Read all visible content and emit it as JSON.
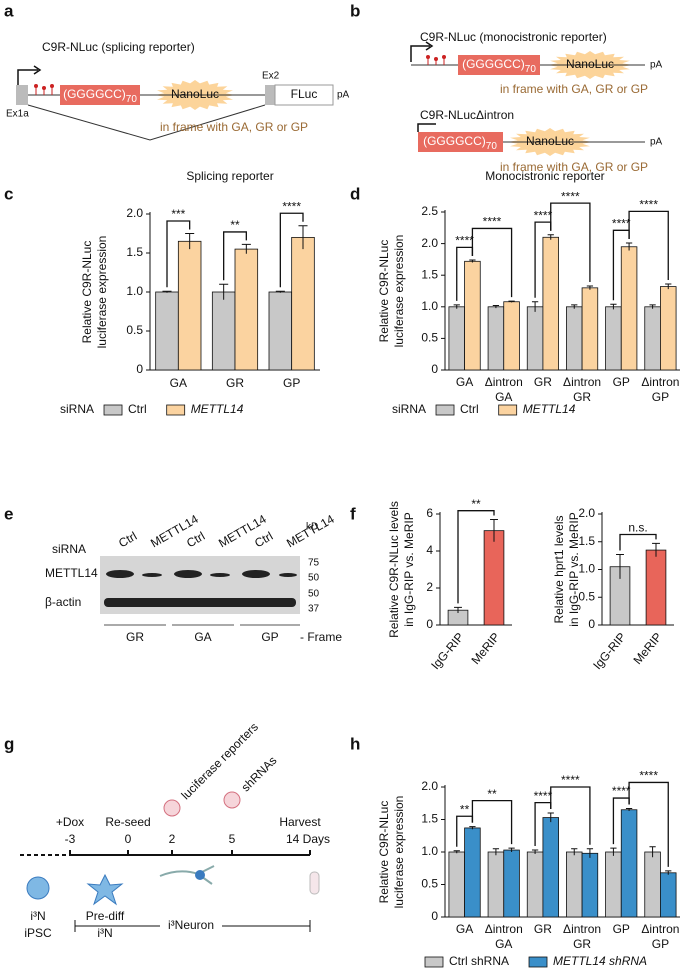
{
  "panel_labels": [
    "a",
    "b",
    "c",
    "d",
    "e",
    "f",
    "g",
    "h"
  ],
  "panel_a": {
    "title": "C9R-NLuc (splicing reporter)",
    "exon1": "Ex1a",
    "repeat": "(GGGGCC)",
    "repeat_count": "70",
    "reporter": "NanoLuc",
    "exon2": "Ex2",
    "fluc": "FLuc",
    "polya": "pA",
    "frame_note": "in frame with GA, GR or GP"
  },
  "panel_b": {
    "constructs": [
      {
        "title": "C9R-NLuc (monocistronic reporter)",
        "repeat": "(GGGGCC)",
        "repeat_count": "70",
        "reporter": "NanoLuc",
        "polya": "pA",
        "frame_note": "in frame with GA, GR or GP"
      },
      {
        "title": "C9R-NLucΔintron",
        "repeat": "(GGGGCC)",
        "repeat_count": "70",
        "reporter": "NanoLuc",
        "polya": "pA",
        "frame_note": "in frame with GA, GR or GP"
      }
    ]
  },
  "panel_e": {
    "sirna_label": "siRNA",
    "lanes": [
      "Ctrl",
      "METTL14",
      "Ctrl",
      "METTL14",
      "Ctrl",
      "METTL14"
    ],
    "kd_label": "kD",
    "markers": [
      "75",
      "50",
      "50",
      "37"
    ],
    "rows": [
      "METTL14",
      "β-actin"
    ],
    "frames": [
      "GR",
      "GA",
      "GP"
    ],
    "frame_label": "- Frame"
  },
  "panel_g": {
    "events": [
      "+Dox",
      "Re-seed",
      "Harvest"
    ],
    "days": [
      "-3",
      "0",
      "2",
      "5",
      "14 Days"
    ],
    "deliveries": [
      "luciferase reporters",
      "shRNAs"
    ],
    "stages": [
      [
        "i³N",
        "iPSC"
      ],
      [
        "Pre-diff",
        "i³N"
      ]
    ],
    "stage_span": "i³Neuron"
  },
  "chart_data": [
    {
      "type": "bar",
      "title": "Splicing reporter",
      "ylabel": [
        "Relative C9R-NLuc",
        "luciferase expression"
      ],
      "legend_title": "siRNA",
      "categories": [
        "GA",
        "GR",
        "GP"
      ],
      "series": [
        {
          "name": "Ctrl",
          "color": "#c8c8c8",
          "values": [
            1.0,
            1.0,
            1.0
          ],
          "errors": [
            0.01,
            0.1,
            0.01
          ]
        },
        {
          "name": "METTL14",
          "color": "#fbd3a0",
          "values": [
            1.65,
            1.55,
            1.7
          ],
          "errors": [
            0.1,
            0.06,
            0.15
          ]
        }
      ],
      "ylim": [
        0,
        2.0
      ],
      "yticks": [
        0,
        0.5,
        {
          "value": 1.0,
          "label": "1.0"
        },
        1.5,
        {
          "value": 2.0,
          "label": "2.0"
        }
      ],
      "annotations": [
        "***",
        "**",
        "****"
      ]
    },
    {
      "type": "bar",
      "title": "Monocistronic reporter",
      "ylabel": [
        "Relative C9R-NLuc",
        "luciferase expression"
      ],
      "legend_title": "siRNA",
      "categories": [
        [
          "GA"
        ],
        [
          "Δintron",
          "GA"
        ],
        [
          "GR"
        ],
        [
          "Δintron",
          "GR"
        ],
        [
          "GP"
        ],
        [
          "Δintron",
          "GP"
        ]
      ],
      "series": [
        {
          "name": "Ctrl",
          "color": "#c8c8c8",
          "values": [
            1.0,
            1.0,
            1.0,
            1.0,
            1.0,
            1.0
          ],
          "errors": [
            0.03,
            0.02,
            0.08,
            0.03,
            0.04,
            0.03
          ]
        },
        {
          "name": "METTL14",
          "color": "#fbd3a0",
          "values": [
            1.72,
            1.08,
            2.1,
            1.3,
            1.95,
            1.32
          ],
          "errors": [
            0.02,
            0.01,
            0.04,
            0.03,
            0.06,
            0.04
          ]
        }
      ],
      "ylim": [
        0,
        2.5
      ],
      "yticks": [
        0,
        0.5,
        {
          "value": 1.0,
          "label": "1.0"
        },
        1.5,
        {
          "value": 2.0,
          "label": "2.0"
        },
        2.5
      ],
      "annotations": [
        "****",
        "****",
        "****",
        "****",
        "****",
        "****"
      ]
    },
    {
      "type": "bar",
      "ylabel": [
        "Relative C9R-NLuc levels",
        "in IgG-RIP vs. MeRIP"
      ],
      "categories": [
        "IgG-RIP",
        "MeRIP"
      ],
      "values": [
        0.8,
        5.1
      ],
      "errors": [
        0.15,
        0.6
      ],
      "colors": [
        "#c8c8c8",
        "#e8655a"
      ],
      "ylim": [
        0,
        6
      ],
      "yticks": [
        0,
        2,
        4,
        6
      ],
      "annotations": [
        "**"
      ]
    },
    {
      "type": "bar",
      "ylabel": [
        "Relative hprt1 levels",
        "in IgG-RIP vs. MeRIP"
      ],
      "categories": [
        "IgG-RIP",
        "MeRIP"
      ],
      "values": [
        1.05,
        1.35
      ],
      "errors": [
        0.22,
        0.12
      ],
      "colors": [
        "#c8c8c8",
        "#e8655a"
      ],
      "ylim": [
        0,
        2.0
      ],
      "yticks": [
        0,
        0.5,
        {
          "value": 1.0,
          "label": "1.0"
        },
        1.5,
        {
          "value": 2.0,
          "label": "2.0"
        }
      ],
      "annotations": [
        "n.s."
      ]
    },
    {
      "type": "bar",
      "ylabel": [
        "Relative C9R-NLuc",
        "luciferase expression"
      ],
      "categories": [
        [
          "GA"
        ],
        [
          "Δintron",
          "GA"
        ],
        [
          "GR"
        ],
        [
          "Δintron",
          "GR"
        ],
        [
          "GP"
        ],
        [
          "Δintron",
          "GP"
        ]
      ],
      "series": [
        {
          "name": "Ctrl shRNA",
          "color": "#c8c8c8",
          "values": [
            1.0,
            1.0,
            1.0,
            1.0,
            1.0,
            1.0
          ],
          "errors": [
            0.02,
            0.05,
            0.03,
            0.05,
            0.06,
            0.08
          ]
        },
        {
          "name": "METTL14 shRNA",
          "color": "#3a8fc9",
          "values": [
            1.37,
            1.03,
            1.53,
            0.98,
            1.65,
            0.68
          ],
          "errors": [
            0.02,
            0.03,
            0.07,
            0.07,
            0.02,
            0.03
          ]
        }
      ],
      "ylim": [
        0,
        2.0
      ],
      "yticks": [
        0,
        0.5,
        {
          "value": 1.0,
          "label": "1.0"
        },
        1.5,
        {
          "value": 2.0,
          "label": "2.0"
        }
      ],
      "annotations": [
        "**",
        "**",
        "****",
        "****",
        "****",
        "****"
      ]
    }
  ]
}
